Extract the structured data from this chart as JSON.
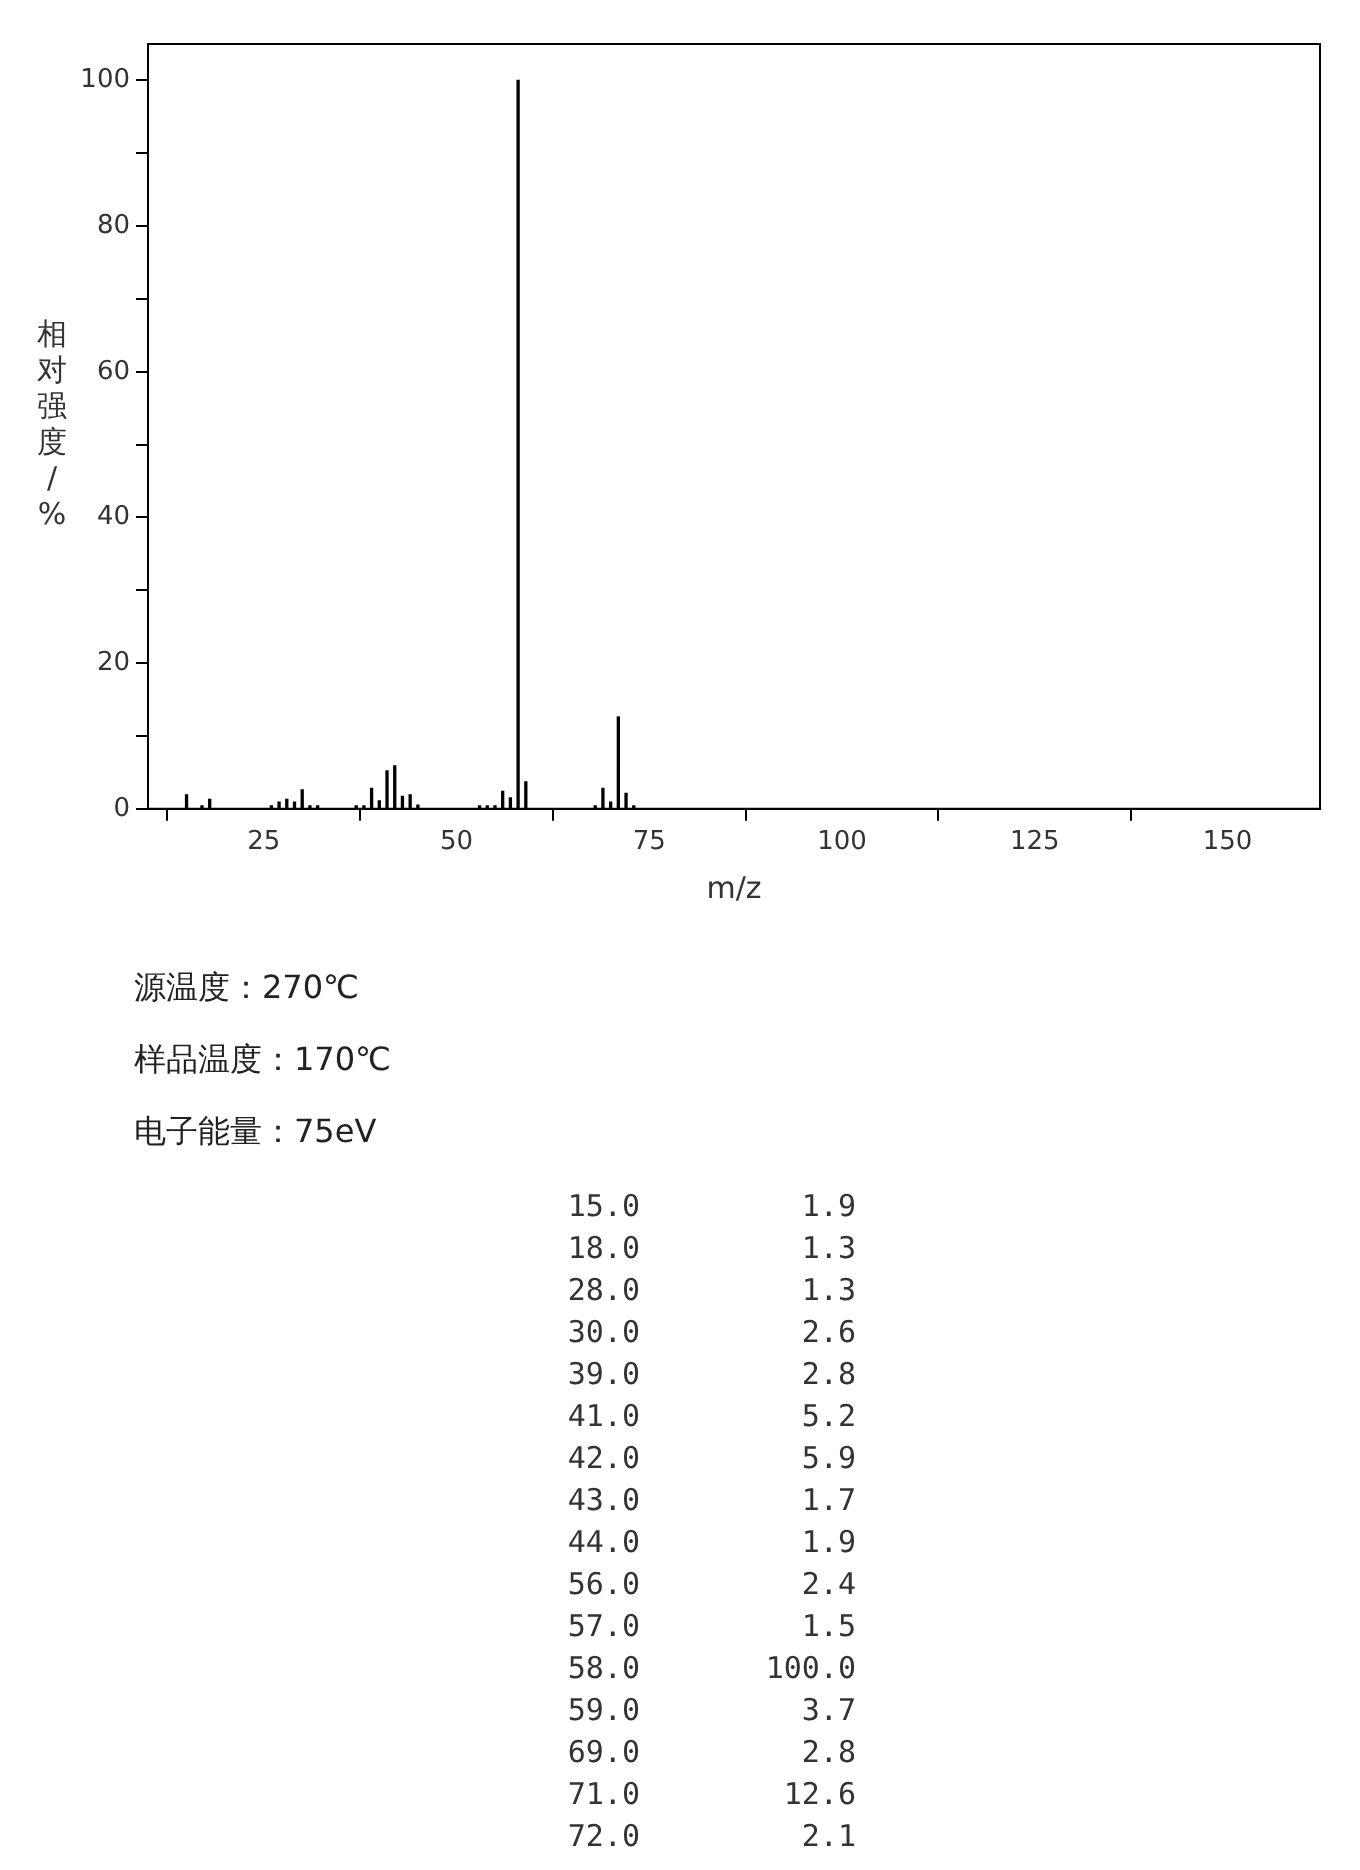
{
  "chart_data": [
    {
      "type": "bar",
      "xlabel": "m/z",
      "ylabel": "相对强度/%",
      "xlim": [
        10,
        162
      ],
      "xticks": [
        25,
        50,
        75,
        100,
        125,
        150
      ],
      "ylim": [
        0,
        105
      ],
      "yticks": [
        0,
        {
          "value": 10,
          "label": null
        },
        20,
        {
          "value": 30,
          "label": null
        },
        40,
        {
          "value": 50,
          "label": null
        },
        60,
        {
          "value": 70,
          "label": null
        },
        80,
        {
          "value": 90,
          "label": null
        },
        100
      ],
      "grid": false,
      "legend": false,
      "series": [
        {
          "color": "#000000",
          "x": [
            15,
            17,
            18,
            26,
            27,
            28,
            29,
            30,
            31,
            32,
            37,
            38,
            39,
            40,
            41,
            42,
            43,
            44,
            45,
            53,
            54,
            55,
            56,
            57,
            58,
            59,
            68,
            69,
            70,
            71,
            72,
            73
          ],
          "values": [
            1.9,
            0.4,
            1.3,
            0.4,
            0.9,
            1.3,
            0.9,
            2.6,
            0.4,
            0.4,
            0.4,
            0.4,
            2.8,
            1.1,
            5.2,
            5.9,
            1.7,
            1.9,
            0.5,
            0.4,
            0.4,
            0.4,
            2.4,
            1.5,
            100.0,
            3.7,
            0.4,
            2.8,
            0.9,
            12.6,
            2.1,
            0.4
          ]
        }
      ],
      "annotations": [
        "源温度：270℃",
        "样品温度：170℃",
        "电子能量：75eV"
      ]
    },
    {
      "type": "other",
      "categories": [
        "15.0",
        "18.0",
        "28.0",
        "30.0",
        "39.0",
        "41.0",
        "42.0",
        "43.0",
        "44.0",
        "56.0",
        "57.0",
        "58.0",
        "59.0",
        "69.0",
        "71.0",
        "72.0"
      ],
      "value_labels": [
        "1.9",
        "1.3",
        "1.3",
        "2.6",
        "2.8",
        "5.2",
        "5.9",
        "1.7",
        "1.9",
        "2.4",
        "1.5",
        "100.0",
        "3.7",
        "2.8",
        "12.6",
        "2.1"
      ]
    }
  ]
}
